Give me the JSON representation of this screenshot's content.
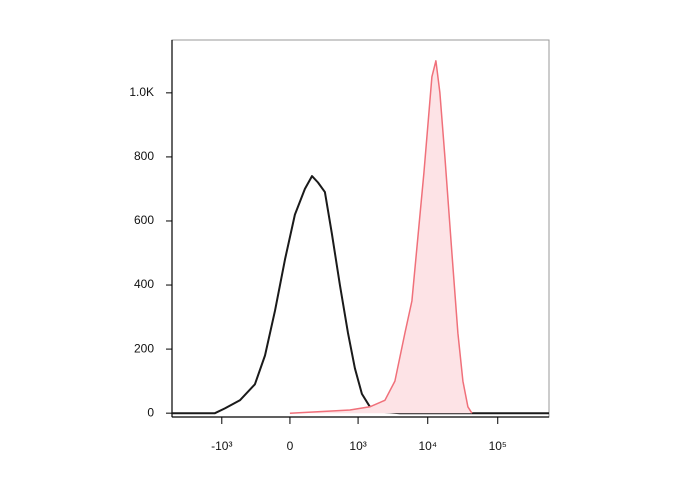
{
  "chart_data": {
    "type": "histogram-overlay",
    "xscale": "biexponential",
    "xlim": [
      -5200,
      540000
    ],
    "xticks": [
      {
        "value": -1000,
        "label": "-10³"
      },
      0,
      {
        "value": 1000,
        "label": "10³"
      },
      {
        "value": 10000,
        "label": "10⁴"
      },
      {
        "value": 100000,
        "label": "10⁵"
      }
    ],
    "ylim": [
      -12,
      1165
    ],
    "yticks": [
      0,
      200,
      400,
      600,
      800,
      {
        "value": 1000,
        "label": "1.0K"
      }
    ],
    "series": [
      {
        "color": "#1a1a1a",
        "fill": null,
        "x": [
          -5200,
          -1258,
          -899,
          -536,
          -306,
          -197,
          -110,
          -35,
          35,
          110,
          170,
          228,
          306,
          401,
          536,
          710,
          899,
          1137,
          1486,
          2071,
          4000,
          540000
        ],
        "values": [
          0,
          0,
          15,
          40,
          90,
          180,
          320,
          480,
          620,
          700,
          740,
          720,
          690,
          560,
          400,
          250,
          140,
          60,
          20,
          5,
          0,
          0
        ]
      },
      {
        "color": "#f0707a",
        "fill": "#fde3e6",
        "x": [
          0,
          249,
          759,
          1486,
          2442,
          3397,
          4709,
          5934,
          7246,
          8815,
          10062,
          11481,
          13094,
          14921,
          17609,
          22167,
          26983,
          31820,
          37475,
          42785
        ],
        "values": [
          0,
          5,
          10,
          20,
          40,
          100,
          250,
          350,
          550,
          750,
          900,
          1050,
          1100,
          1000,
          800,
          500,
          250,
          100,
          20,
          0
        ]
      }
    ]
  }
}
